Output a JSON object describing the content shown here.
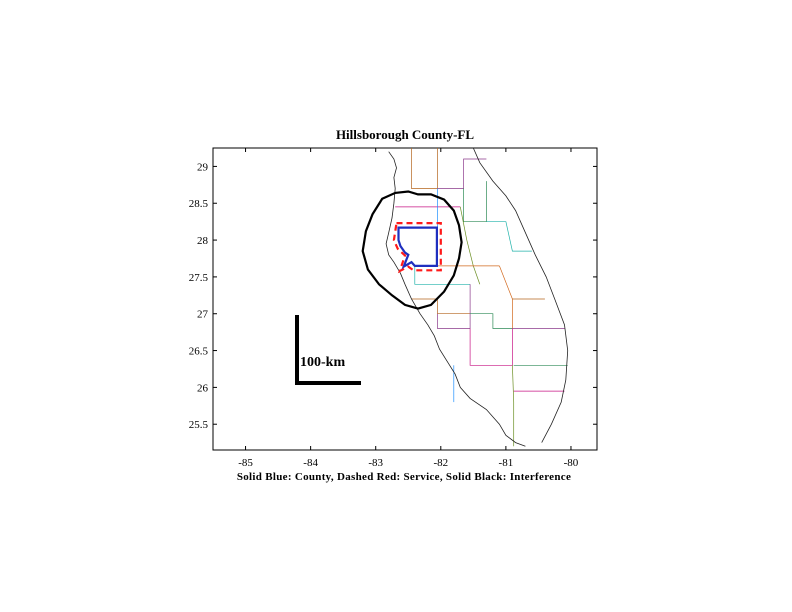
{
  "map": {
    "title": "Hillsborough County-FL",
    "caption": "Solid Blue: County, Dashed Red: Service, Solid Black: Interference",
    "scale_bar_label": "100-km",
    "x_axis": {
      "range": [
        -85.5,
        -79.6
      ],
      "ticks": [
        -85,
        -84,
        -83,
        -82,
        -81,
        -80
      ],
      "tick_labels": [
        "-85",
        "-84",
        "-83",
        "-82",
        "-81",
        "-80"
      ]
    },
    "y_axis": {
      "range": [
        25.15,
        29.25
      ],
      "ticks": [
        25.5,
        26,
        26.5,
        27,
        27.5,
        28,
        28.5,
        29
      ],
      "tick_labels": [
        "25.5",
        "26",
        "26.5",
        "27",
        "27.5",
        "28",
        "28.5",
        "29"
      ]
    },
    "colors": {
      "county": "#1f2fbf",
      "service": "#ff1a1a",
      "interference": "#000000",
      "coastline": "#222222"
    },
    "county_outline": [
      [
        -82.65,
        28.17
      ],
      [
        -82.06,
        28.17
      ],
      [
        -82.06,
        27.65
      ],
      [
        -82.4,
        27.65
      ],
      [
        -82.45,
        27.7
      ],
      [
        -82.57,
        27.64
      ],
      [
        -82.5,
        27.8
      ],
      [
        -82.55,
        27.83
      ],
      [
        -82.62,
        27.92
      ],
      [
        -82.65,
        28.0
      ],
      [
        -82.65,
        28.17
      ]
    ],
    "service_outline": [
      [
        -82.68,
        28.23
      ],
      [
        -82.0,
        28.23
      ],
      [
        -82.0,
        27.59
      ],
      [
        -82.42,
        27.59
      ],
      [
        -82.5,
        27.64
      ],
      [
        -82.63,
        27.58
      ],
      [
        -82.55,
        27.79
      ],
      [
        -82.66,
        27.88
      ],
      [
        -82.72,
        28.0
      ],
      [
        -82.68,
        28.23
      ]
    ],
    "interference_outline": [
      [
        -82.9,
        28.56
      ],
      [
        -82.7,
        28.64
      ],
      [
        -82.5,
        28.66
      ],
      [
        -82.35,
        28.62
      ],
      [
        -82.15,
        28.62
      ],
      [
        -81.95,
        28.55
      ],
      [
        -81.8,
        28.4
      ],
      [
        -81.72,
        28.2
      ],
      [
        -81.68,
        27.97
      ],
      [
        -81.72,
        27.75
      ],
      [
        -81.8,
        27.52
      ],
      [
        -81.95,
        27.3
      ],
      [
        -82.15,
        27.12
      ],
      [
        -82.35,
        27.07
      ],
      [
        -82.55,
        27.12
      ],
      [
        -82.75,
        27.25
      ],
      [
        -82.95,
        27.4
      ],
      [
        -83.12,
        27.6
      ],
      [
        -83.2,
        27.85
      ],
      [
        -83.15,
        28.12
      ],
      [
        -83.05,
        28.35
      ],
      [
        -82.9,
        28.56
      ]
    ],
    "coastline": [
      [
        -82.8,
        29.2
      ],
      [
        -82.72,
        29.1
      ],
      [
        -82.68,
        28.98
      ],
      [
        -82.72,
        28.85
      ],
      [
        -82.7,
        28.7
      ],
      [
        -82.72,
        28.5
      ],
      [
        -82.75,
        28.3
      ],
      [
        -82.8,
        28.1
      ],
      [
        -82.84,
        27.95
      ],
      [
        -82.8,
        27.8
      ],
      [
        -82.72,
        27.7
      ],
      [
        -82.62,
        27.55
      ],
      [
        -82.55,
        27.4
      ],
      [
        -82.45,
        27.2
      ],
      [
        -82.32,
        27.0
      ],
      [
        -82.2,
        26.85
      ],
      [
        -82.1,
        26.7
      ],
      [
        -82.02,
        26.52
      ],
      [
        -81.9,
        26.35
      ],
      [
        -81.78,
        26.18
      ],
      [
        -81.7,
        26.0
      ],
      [
        -81.55,
        25.85
      ],
      [
        -81.3,
        25.7
      ],
      [
        -81.1,
        25.5
      ],
      [
        -81.0,
        25.35
      ],
      [
        -80.85,
        25.25
      ],
      [
        -80.7,
        25.2
      ]
    ],
    "east_coast": [
      [
        -81.5,
        29.25
      ],
      [
        -81.4,
        29.05
      ],
      [
        -81.2,
        28.8
      ],
      [
        -81.0,
        28.6
      ],
      [
        -80.85,
        28.4
      ],
      [
        -80.7,
        28.1
      ],
      [
        -80.55,
        27.8
      ],
      [
        -80.38,
        27.5
      ],
      [
        -80.25,
        27.2
      ],
      [
        -80.1,
        26.85
      ],
      [
        -80.05,
        26.5
      ],
      [
        -80.08,
        26.1
      ],
      [
        -80.15,
        25.8
      ],
      [
        -80.3,
        25.5
      ],
      [
        -80.45,
        25.25
      ]
    ],
    "county_borders": [
      [
        [
          -82.45,
          29.25
        ],
        [
          -82.45,
          28.7
        ],
        [
          -82.05,
          28.7
        ],
        [
          -82.05,
          29.25
        ]
      ],
      [
        [
          -82.05,
          28.7
        ],
        [
          -81.65,
          28.7
        ],
        [
          -81.65,
          29.1
        ],
        [
          -81.3,
          29.1
        ]
      ],
      [
        [
          -81.65,
          28.7
        ],
        [
          -81.65,
          28.25
        ],
        [
          -81.3,
          28.25
        ],
        [
          -81.3,
          28.8
        ]
      ],
      [
        [
          -82.7,
          28.45
        ],
        [
          -82.05,
          28.45
        ],
        [
          -81.7,
          28.45
        ]
      ],
      [
        [
          -82.05,
          28.7
        ],
        [
          -82.05,
          28.17
        ]
      ],
      [
        [
          -81.7,
          28.45
        ],
        [
          -81.6,
          28.0
        ],
        [
          -81.5,
          27.65
        ],
        [
          -81.4,
          27.4
        ]
      ],
      [
        [
          -82.06,
          27.65
        ],
        [
          -81.7,
          27.65
        ],
        [
          -81.5,
          27.65
        ],
        [
          -81.1,
          27.65
        ]
      ],
      [
        [
          -82.4,
          27.65
        ],
        [
          -82.4,
          27.4
        ],
        [
          -82.05,
          27.4
        ],
        [
          -81.55,
          27.4
        ]
      ],
      [
        [
          -82.45,
          27.2
        ],
        [
          -82.05,
          27.2
        ],
        [
          -82.05,
          27.0
        ],
        [
          -81.55,
          27.0
        ]
      ],
      [
        [
          -82.05,
          27.0
        ],
        [
          -82.05,
          26.8
        ],
        [
          -81.55,
          26.8
        ],
        [
          -81.55,
          27.4
        ]
      ],
      [
        [
          -81.55,
          27.0
        ],
        [
          -81.2,
          27.0
        ],
        [
          -81.2,
          26.8
        ],
        [
          -80.9,
          26.8
        ]
      ],
      [
        [
          -81.55,
          26.8
        ],
        [
          -81.55,
          26.3
        ],
        [
          -80.9,
          26.3
        ],
        [
          -80.9,
          26.8
        ]
      ],
      [
        [
          -81.8,
          26.3
        ],
        [
          -81.8,
          25.8
        ]
      ],
      [
        [
          -80.9,
          26.3
        ],
        [
          -80.88,
          25.8
        ],
        [
          -80.88,
          25.2
        ]
      ],
      [
        [
          -81.1,
          27.65
        ],
        [
          -80.9,
          27.2
        ],
        [
          -80.9,
          26.8
        ]
      ],
      [
        [
          -81.3,
          28.25
        ],
        [
          -81.0,
          28.25
        ],
        [
          -80.9,
          27.85
        ],
        [
          -80.6,
          27.85
        ]
      ],
      [
        [
          -80.9,
          27.2
        ],
        [
          -80.4,
          27.2
        ]
      ],
      [
        [
          -80.9,
          26.8
        ],
        [
          -80.1,
          26.8
        ]
      ],
      [
        [
          -80.88,
          26.3
        ],
        [
          -80.05,
          26.3
        ]
      ],
      [
        [
          -80.88,
          25.95
        ],
        [
          -80.1,
          25.95
        ]
      ]
    ]
  }
}
